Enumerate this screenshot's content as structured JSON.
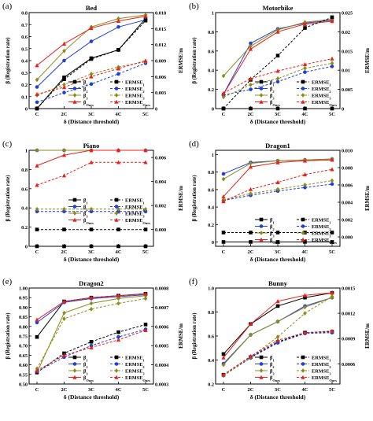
{
  "figure": {
    "panels": [
      {
        "id": "a",
        "letter": "(a)",
        "title": "Bed"
      },
      {
        "id": "b",
        "letter": "(b)",
        "title": "Motorbike"
      },
      {
        "id": "c",
        "letter": "(c)",
        "title": "Piano"
      },
      {
        "id": "d",
        "letter": "(d)",
        "title": "Dragon1"
      },
      {
        "id": "e",
        "letter": "(e)",
        "title": "Dragon2"
      },
      {
        "id": "f",
        "letter": "(f)",
        "title": "Bunny"
      }
    ]
  },
  "chart_data": [
    {
      "id": "a",
      "type": "line",
      "title": "Bed",
      "xlabel": "δ (Distance threshold)",
      "ylabel": "β (Registration rate)",
      "y2label": "ERMSE/m",
      "categories": [
        "C",
        "2C",
        "3C",
        "4C",
        "5C"
      ],
      "ylim": [
        0,
        0.8
      ],
      "yticks": [
        "0",
        "0.1",
        "0.2",
        "0.3",
        "0.4",
        "0.5",
        "0.6",
        "0.7",
        "0.8"
      ],
      "y2lim": [
        0,
        0.018
      ],
      "y2ticks": [
        "0",
        "0.003",
        "0.006",
        "0.009",
        "0.012",
        "0.015",
        "0.018"
      ],
      "legend_position": "bottom-right",
      "legend_columns": 2,
      "series": [
        {
          "name": "β1",
          "axis": "left",
          "dash": false,
          "color": "#000000",
          "marker": "square",
          "values": [
            0.0,
            0.26,
            0.42,
            0.49,
            0.75
          ]
        },
        {
          "name": "β2",
          "axis": "left",
          "dash": false,
          "color": "#1f3fd6",
          "marker": "circle",
          "values": [
            0.18,
            0.4,
            0.56,
            0.68,
            0.74
          ]
        },
        {
          "name": "β3",
          "axis": "left",
          "dash": false,
          "color": "#8b8b1a",
          "marker": "diamond",
          "values": [
            0.24,
            0.48,
            0.68,
            0.75,
            0.78
          ]
        },
        {
          "name": "βOurs",
          "axis": "left",
          "dash": false,
          "color": "#e8201a",
          "marker": "triangle",
          "values": [
            0.36,
            0.54,
            0.67,
            0.73,
            0.77
          ]
        },
        {
          "name": "ERMSE1",
          "axis": "right",
          "dash": true,
          "color": "#000000",
          "marker": "square",
          "values": [
            0.0,
            0.0055,
            0.0093,
            0.011,
            0.0165
          ]
        },
        {
          "name": "ERMSE2",
          "axis": "right",
          "dash": true,
          "color": "#1f3fd6",
          "marker": "circle",
          "values": [
            0.0012,
            0.003,
            0.0046,
            0.0065,
            0.0085
          ]
        },
        {
          "name": "ERMSE3",
          "axis": "right",
          "dash": true,
          "color": "#8b8b1a",
          "marker": "diamond",
          "values": [
            0.0025,
            0.0045,
            0.0065,
            0.0078,
            0.0088
          ]
        },
        {
          "name": "ERMSEOurs",
          "axis": "right",
          "dash": true,
          "color": "#e8201a",
          "marker": "triangle",
          "values": [
            0.0027,
            0.004,
            0.006,
            0.0075,
            0.009
          ]
        }
      ]
    },
    {
      "id": "b",
      "type": "line",
      "title": "Motorbike",
      "xlabel": "δ (Distance threshold)",
      "ylabel": "β (Registration rate)",
      "y2label": "ERMSE/m",
      "categories": [
        "C",
        "2C",
        "3C",
        "4C",
        "5C"
      ],
      "ylim": [
        0,
        1.0
      ],
      "yticks": [
        "0",
        "0.2",
        "0.4",
        "0.6",
        "0.8",
        "1"
      ],
      "y2lim": [
        0,
        0.025
      ],
      "y2ticks": [
        "0",
        "0.005",
        "0.01",
        "0.015",
        "0.02",
        "0.025"
      ],
      "legend_position": "bottom-right",
      "legend_columns": 2,
      "series": [
        {
          "name": "β1",
          "axis": "left",
          "dash": false,
          "color": "#000000",
          "marker": "square",
          "values": [
            0.0,
            0.0,
            0.0,
            0.0,
            0.0
          ]
        },
        {
          "name": "β2",
          "axis": "left",
          "dash": false,
          "color": "#1f3fd6",
          "marker": "circle",
          "values": [
            0.15,
            0.68,
            0.83,
            0.89,
            0.92
          ]
        },
        {
          "name": "β3",
          "axis": "left",
          "dash": false,
          "color": "#8b8b1a",
          "marker": "diamond",
          "values": [
            0.34,
            0.65,
            0.82,
            0.9,
            0.93
          ]
        },
        {
          "name": "βOurs",
          "axis": "left",
          "dash": false,
          "color": "#e8201a",
          "marker": "triangle",
          "values": [
            0.15,
            0.62,
            0.8,
            0.88,
            0.91
          ]
        },
        {
          "name": "ERMSE1",
          "axis": "right",
          "dash": true,
          "color": "#000000",
          "marker": "square",
          "values": [
            0.0,
            0.0075,
            0.0138,
            0.021,
            0.0238
          ]
        },
        {
          "name": "ERMSE2",
          "axis": "right",
          "dash": true,
          "color": "#1f3fd6",
          "marker": "circle",
          "values": [
            0.0035,
            0.005,
            0.007,
            0.0095,
            0.011
          ]
        },
        {
          "name": "ERMSE3",
          "axis": "right",
          "dash": true,
          "color": "#8b8b1a",
          "marker": "diamond",
          "values": [
            0.003,
            0.0062,
            0.0078,
            0.0105,
            0.0118
          ]
        },
        {
          "name": "ERMSEOurs",
          "axis": "right",
          "dash": true,
          "color": "#e8201a",
          "marker": "triangle",
          "values": [
            0.004,
            0.0078,
            0.0098,
            0.0115,
            0.013
          ]
        }
      ]
    },
    {
      "id": "c",
      "type": "line",
      "title": "Piano",
      "xlabel": "δ (Distance threshold)",
      "ylabel": "β (Registration rate)",
      "y2label": "ERMSE/m",
      "categories": [
        "C",
        "2C",
        "3C",
        "4C",
        "5C"
      ],
      "ylim": [
        0,
        1.0
      ],
      "yticks": [
        "0",
        "0.2",
        "0.4",
        "0.6",
        "0.8",
        "1"
      ],
      "y2lim": [
        -0.0014,
        0.0066
      ],
      "y2ticks": [
        "0.000",
        "0.002",
        "0.004",
        "0.006"
      ],
      "y2tickvals": [
        0,
        0.002,
        0.004,
        0.006
      ],
      "legend_position": "center-right",
      "legend_columns": 2,
      "series": [
        {
          "name": "β1",
          "axis": "left",
          "dash": false,
          "color": "#000000",
          "marker": "square",
          "values": [
            0.0,
            0.0,
            0.0,
            0.0,
            0.0
          ]
        },
        {
          "name": "β2",
          "axis": "left",
          "dash": false,
          "color": "#1f3fd6",
          "marker": "circle",
          "values": [
            1.0,
            1.0,
            1.0,
            1.0,
            1.0
          ]
        },
        {
          "name": "β3",
          "axis": "left",
          "dash": false,
          "color": "#8b8b1a",
          "marker": "diamond",
          "values": [
            1.0,
            1.0,
            1.0,
            1.0,
            1.0
          ]
        },
        {
          "name": "βOurs",
          "axis": "left",
          "dash": false,
          "color": "#e8201a",
          "marker": "triangle",
          "values": [
            0.84,
            0.95,
            1.0,
            1.0,
            1.0
          ]
        },
        {
          "name": "ERMSE1",
          "axis": "right",
          "dash": true,
          "color": "#000000",
          "marker": "square",
          "values": [
            0.0,
            0.0,
            0.0,
            0.0,
            0.0
          ]
        },
        {
          "name": "ERMSE2",
          "axis": "right",
          "dash": true,
          "color": "#1f3fd6",
          "marker": "circle",
          "values": [
            0.0015,
            0.0015,
            0.0015,
            0.0015,
            0.0015
          ]
        },
        {
          "name": "ERMSE3",
          "axis": "right",
          "dash": true,
          "color": "#8b8b1a",
          "marker": "diamond",
          "values": [
            0.0017,
            0.0017,
            0.0017,
            0.0017,
            0.0017
          ]
        },
        {
          "name": "ERMSEOurs",
          "axis": "right",
          "dash": true,
          "color": "#e8201a",
          "marker": "triangle",
          "values": [
            0.0037,
            0.0045,
            0.0056,
            0.0056,
            0.0056
          ]
        }
      ]
    },
    {
      "id": "d",
      "type": "line",
      "title": "Dragon1",
      "xlabel": "δ (Distance threshold)",
      "ylabel": "β (Registration rate)",
      "y2label": "ERMSE/m",
      "categories": [
        "C",
        "2C",
        "3C",
        "4C",
        "5C"
      ],
      "ylim": [
        -0.05,
        1.05
      ],
      "yticks": [
        "0",
        "0.2",
        "0.4",
        "0.6",
        "0.8",
        "1"
      ],
      "ytickvals": [
        0,
        0.2,
        0.4,
        0.6,
        0.8,
        1.0
      ],
      "y2lim": [
        -0.00109,
        0.01
      ],
      "y2ticks": [
        "0.000",
        "0.002",
        "0.004",
        "0.006",
        "0.008",
        "0.010"
      ],
      "y2tickvals": [
        0,
        0.002,
        0.004,
        0.006,
        0.008,
        0.01
      ],
      "legend_position": "bottom-right",
      "legend_columns": 2,
      "series": [
        {
          "name": "β1",
          "axis": "left",
          "dash": false,
          "color": "#000000",
          "marker": "square",
          "values": [
            0.0,
            0.0,
            0.0,
            0.0,
            0.0
          ]
        },
        {
          "name": "β2",
          "axis": "left",
          "dash": false,
          "color": "#1f3fd6",
          "marker": "circle",
          "values": [
            0.78,
            0.91,
            0.93,
            0.94,
            0.95
          ]
        },
        {
          "name": "β3",
          "axis": "left",
          "dash": false,
          "color": "#8b8b1a",
          "marker": "diamond",
          "values": [
            0.72,
            0.9,
            0.93,
            0.94,
            0.95
          ]
        },
        {
          "name": "βOurs",
          "axis": "left",
          "dash": false,
          "color": "#e8201a",
          "marker": "triangle",
          "values": [
            0.52,
            0.86,
            0.91,
            0.93,
            0.94
          ]
        },
        {
          "name": "ERMSE1",
          "axis": "right",
          "dash": true,
          "color": "#000000",
          "marker": "square",
          "values": [
            0.0005,
            0.0005,
            0.0005,
            0.0005,
            0.0005
          ]
        },
        {
          "name": "ERMSE2",
          "axis": "right",
          "dash": true,
          "color": "#1f3fd6",
          "marker": "circle",
          "values": [
            0.0042,
            0.0048,
            0.0053,
            0.0057,
            0.0061
          ]
        },
        {
          "name": "ERMSE3",
          "axis": "right",
          "dash": true,
          "color": "#8b8b1a",
          "marker": "diamond",
          "values": [
            0.0043,
            0.005,
            0.0055,
            0.006,
            0.0065
          ]
        },
        {
          "name": "ERMSEOurs",
          "axis": "right",
          "dash": true,
          "color": "#e8201a",
          "marker": "triangle",
          "values": [
            0.0041,
            0.0055,
            0.0063,
            0.0072,
            0.0078
          ]
        }
      ]
    },
    {
      "id": "e",
      "type": "line",
      "title": "Dragon2",
      "xlabel": "δ (Distance threshold)",
      "ylabel": "β (Registration rate)",
      "y2label": "ERMSE/m",
      "categories": [
        "C",
        "2C",
        "3C",
        "4C",
        "5C"
      ],
      "ylim": [
        0.5,
        1.0
      ],
      "yticks": [
        "0.50",
        "0.55",
        "0.60",
        "0.65",
        "0.70",
        "0.75",
        "0.80",
        "0.85",
        "0.90",
        "0.95",
        "1.00"
      ],
      "y2lim": [
        0.0003,
        0.0008
      ],
      "y2ticks": [
        "0.0003",
        "0.0004",
        "0.0005",
        "0.0006",
        "0.0007",
        "0.0008"
      ],
      "legend_position": "bottom-right",
      "legend_columns": 2,
      "series": [
        {
          "name": "β1",
          "axis": "left",
          "dash": false,
          "color": "#000000",
          "marker": "square",
          "values": [
            0.745,
            0.93,
            0.95,
            0.96,
            0.97
          ]
        },
        {
          "name": "β2",
          "axis": "left",
          "dash": false,
          "color": "#1f3fd6",
          "marker": "circle",
          "values": [
            0.82,
            0.925,
            0.945,
            0.955,
            0.965
          ]
        },
        {
          "name": "β3",
          "axis": "left",
          "dash": false,
          "color": "#8b8b1a",
          "marker": "diamond",
          "values": [
            0.56,
            0.87,
            0.92,
            0.945,
            0.96
          ]
        },
        {
          "name": "βOurs",
          "axis": "left",
          "dash": false,
          "color": "#e8201a",
          "marker": "triangle",
          "values": [
            0.835,
            0.93,
            0.95,
            0.96,
            0.97
          ]
        },
        {
          "name": "ERMSE1",
          "axis": "right",
          "dash": true,
          "color": "#000000",
          "marker": "square",
          "values": [
            0.00036,
            0.00046,
            0.00052,
            0.00057,
            0.00061
          ]
        },
        {
          "name": "ERMSE2",
          "axis": "right",
          "dash": true,
          "color": "#1f3fd6",
          "marker": "circle",
          "values": [
            0.000365,
            0.00044,
            0.0005,
            0.000545,
            0.000585
          ]
        },
        {
          "name": "ERMSE3",
          "axis": "right",
          "dash": true,
          "color": "#8b8b1a",
          "marker": "diamond",
          "values": [
            0.00038,
            0.00064,
            0.00069,
            0.00072,
            0.000745
          ]
        },
        {
          "name": "ERMSEOurs",
          "axis": "right",
          "dash": true,
          "color": "#e8201a",
          "marker": "triangle",
          "values": [
            0.00037,
            0.00045,
            0.00049,
            0.00053,
            0.00058
          ]
        }
      ]
    },
    {
      "id": "f",
      "type": "line",
      "title": "Bunny",
      "xlabel": "δ (Distance threshold)",
      "ylabel": "β (Registration rate)",
      "y2label": "ERMSE/m",
      "categories": [
        "C",
        "2C",
        "3C",
        "4C",
        "5C"
      ],
      "ylim": [
        0.2,
        1.0
      ],
      "yticks": [
        "0.2",
        "0.4",
        "0.6",
        "0.8",
        "1.0"
      ],
      "y2lim": [
        0.00036,
        0.0015
      ],
      "y2ticks": [
        "0.0006",
        "0.0009",
        "0.0012",
        "0.0015"
      ],
      "y2tickvals": [
        0.0006,
        0.0009,
        0.0012,
        0.0015
      ],
      "legend_position": "bottom-right",
      "legend_columns": 2,
      "series": [
        {
          "name": "β1",
          "axis": "left",
          "dash": false,
          "color": "#000000",
          "marker": "square",
          "values": [
            0.45,
            0.7,
            0.85,
            0.92,
            0.96
          ]
        },
        {
          "name": "β2",
          "axis": "left",
          "dash": false,
          "color": "#1f3fd6",
          "marker": "circle",
          "values": [
            0.37,
            0.61,
            0.72,
            0.85,
            0.92
          ]
        },
        {
          "name": "β3",
          "axis": "left",
          "dash": false,
          "color": "#8b8b1a",
          "marker": "diamond",
          "values": [
            0.36,
            0.61,
            0.72,
            0.84,
            0.92
          ]
        },
        {
          "name": "βOurs",
          "axis": "left",
          "dash": false,
          "color": "#e8201a",
          "marker": "triangle",
          "values": [
            0.42,
            0.7,
            0.89,
            0.94,
            0.96
          ]
        },
        {
          "name": "ERMSE1",
          "axis": "right",
          "dash": true,
          "color": "#000000",
          "marker": "square",
          "values": [
            0.00047,
            0.00068,
            0.00086,
            0.00097,
            0.00098
          ]
        },
        {
          "name": "ERMSE2",
          "axis": "right",
          "dash": true,
          "color": "#1f3fd6",
          "marker": "circle",
          "values": [
            0.00046,
            0.00067,
            0.00085,
            0.00096,
            0.00097
          ]
        },
        {
          "name": "ERMSE3",
          "axis": "right",
          "dash": true,
          "color": "#8b8b1a",
          "marker": "diamond",
          "values": [
            0.00046,
            0.00068,
            0.00092,
            0.0012,
            0.0014
          ]
        },
        {
          "name": "ERMSEOurs",
          "axis": "right",
          "dash": true,
          "color": "#e8201a",
          "marker": "triangle",
          "values": [
            0.00047,
            0.00069,
            0.00088,
            0.00097,
            0.00099
          ]
        }
      ]
    }
  ]
}
